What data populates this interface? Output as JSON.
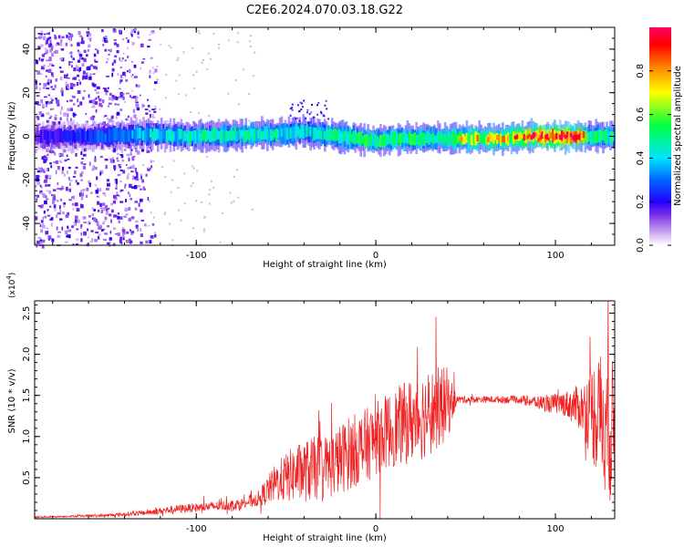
{
  "title": "C2E6.2024.070.03.18.G22",
  "colors": {
    "snr_line": "#ee2222",
    "colormap": [
      "#ffffff",
      "#c9a6f0",
      "#7a2ee6",
      "#2200ff",
      "#0066ff",
      "#00e5ff",
      "#00ff40",
      "#ffff00",
      "#ff8000",
      "#ff0000",
      "#ff0066"
    ]
  },
  "chart_data": [
    {
      "type": "heatmap",
      "xlabel": "Height of straight line (km)",
      "ylabel": "Frequency (Hz)",
      "xlim": [
        -190,
        133
      ],
      "ylim": [
        -50,
        50
      ],
      "xticks": [
        -100,
        0,
        100
      ],
      "yticks": [
        -40,
        -20,
        0,
        20,
        40
      ],
      "colorbar": {
        "label": "Normalized spectral amplitude",
        "range": [
          0.0,
          1.0
        ],
        "ticks": [
          0.0,
          0.2,
          0.4,
          0.6,
          0.8
        ]
      },
      "ridge": {
        "x": [
          -190,
          -150,
          -130,
          -100,
          -60,
          -40,
          -30,
          -20,
          -10,
          0,
          10,
          20,
          30,
          50,
          70,
          85,
          100,
          110,
          120,
          133
        ],
        "frequency": [
          0,
          0,
          1,
          0,
          1,
          2,
          1,
          0,
          -1,
          -2,
          -1,
          -1,
          -1,
          -1,
          -1,
          0,
          0,
          0,
          0,
          0
        ],
        "amplitude": [
          0.2,
          0.35,
          0.45,
          0.55,
          0.55,
          0.5,
          0.55,
          0.6,
          0.6,
          0.6,
          0.6,
          0.6,
          0.55,
          0.75,
          0.75,
          0.9,
          1.0,
          0.95,
          0.6,
          0.6
        ]
      },
      "noise_region_x": [
        -190,
        -130
      ]
    },
    {
      "type": "line",
      "xlabel": "Height of straight line (km)",
      "ylabel": "SNR (10 * v/v)",
      "y_multiplier_label": "(x10",
      "y_multiplier_exp": "4",
      "y_multiplier_close": ")",
      "xlim": [
        -190,
        133
      ],
      "ylim": [
        0,
        2.65
      ],
      "xticks": [
        -100,
        0,
        100
      ],
      "yticks": [
        0.5,
        1.0,
        1.5,
        2.0,
        2.5
      ],
      "ytick_labels": [
        "0.5",
        "1.0",
        "1.5",
        "2.0",
        "2.5"
      ],
      "series": [
        {
          "x": [
            -190,
            -170,
            -150,
            -130,
            -110,
            -90,
            -75,
            -65,
            -55,
            -45,
            -35,
            -25,
            -15,
            -5,
            5,
            15,
            25,
            35,
            40,
            45,
            60,
            80,
            95,
            105,
            115,
            120,
            125,
            130,
            133
          ],
          "y": [
            0.02,
            0.03,
            0.04,
            0.07,
            0.12,
            0.15,
            0.18,
            0.25,
            0.45,
            0.55,
            0.6,
            0.65,
            0.8,
            0.9,
            1.05,
            1.15,
            1.25,
            1.35,
            1.4,
            1.45,
            1.45,
            1.45,
            1.4,
            1.4,
            1.35,
            1.3,
            1.25,
            1.1,
            1.0
          ],
          "spread": [
            0.01,
            0.01,
            0.02,
            0.03,
            0.05,
            0.06,
            0.07,
            0.1,
            0.25,
            0.35,
            0.4,
            0.4,
            0.45,
            0.45,
            0.45,
            0.5,
            0.55,
            0.5,
            0.45,
            0.05,
            0.04,
            0.05,
            0.1,
            0.15,
            0.3,
            0.6,
            0.8,
            0.9,
            0.9
          ]
        }
      ]
    }
  ]
}
